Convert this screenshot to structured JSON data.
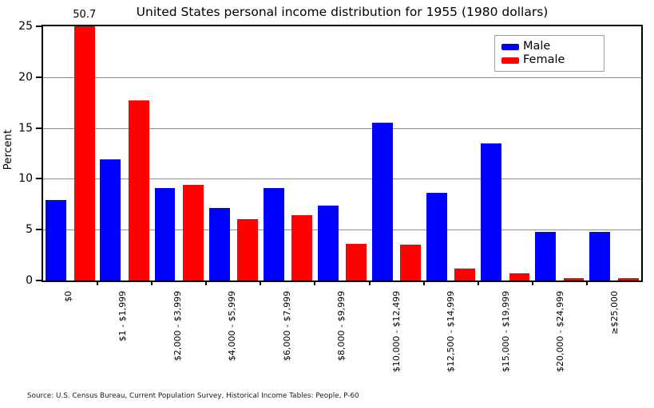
{
  "page": {
    "title_label": "United States personal income distribution for 1955 (1980 dollars)",
    "y_axis_label": "Percent",
    "peak_annotation": "50.7",
    "source_note": "Source: U.S. Census Bureau, Current Population Survey, Historical Income Tables: People, P-60"
  },
  "legend": {
    "items": [
      {
        "label": "Male",
        "color": "#0000ff"
      },
      {
        "label": "Female",
        "color": "#ff0000"
      }
    ]
  },
  "chart_data": {
    "type": "bar",
    "title": "United States personal income distribution for 1955 (1980 dollars)",
    "xlabel": "",
    "ylabel": "Percent",
    "ylim": [
      0,
      25
    ],
    "yticks": [
      0,
      5,
      10,
      15,
      20,
      25
    ],
    "grid": true,
    "grid_color": "#8c8c8c",
    "legend_position": "upper right",
    "categories": [
      "$0",
      "$1 - $1,999",
      "$2,000 - $3,999",
      "$4,000 - $5,999",
      "$6,000 - $7,999",
      "$8,000 - $9,999",
      "$10,000 - $12,499",
      "$12,500 - $14,999",
      "$15,000 - $19,999",
      "$20,000 - $24,999",
      "≥$25,000"
    ],
    "series": [
      {
        "name": "Male",
        "color": "#0000ff",
        "values": [
          7.9,
          11.9,
          9.1,
          7.1,
          9.1,
          7.4,
          15.5,
          8.6,
          13.5,
          4.8,
          4.8
        ]
      },
      {
        "name": "Female",
        "color": "#ff0000",
        "values": [
          50.7,
          17.7,
          9.4,
          6.0,
          6.4,
          3.6,
          3.5,
          1.2,
          0.7,
          0.2,
          0.2
        ]
      }
    ],
    "bar_clip_max": 25,
    "annotation": {
      "text": "50.7",
      "series": "Female",
      "category": "$0"
    }
  }
}
